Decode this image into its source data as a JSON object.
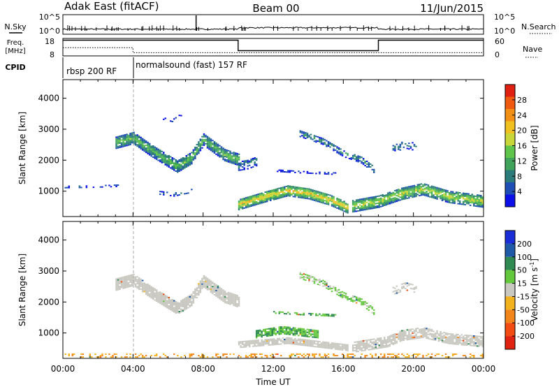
{
  "header": {
    "left_title": "Adak East (fitACF)",
    "center_title": "Beam 00",
    "right_title": "11/Jun/2015"
  },
  "chart_data": [
    {
      "type": "line",
      "panel": "noise",
      "left_label": "N.Sky",
      "right_label": "N.Search",
      "left_ticks": [
        "10^5",
        "10^0"
      ],
      "right_ticks": [
        "10^5",
        "10^0"
      ],
      "scale": "log",
      "x_range": [
        "00:00",
        "24:00"
      ]
    },
    {
      "type": "line",
      "panel": "frequency",
      "left_label_line1": "Freq.",
      "left_label_line2": "[MHz]",
      "right_label": "Nave",
      "left_ticks": [
        18,
        8
      ],
      "right_ticks": [
        60,
        0
      ],
      "ylim": [
        8,
        18
      ],
      "freq_segments": [
        {
          "start_hour": 0,
          "end_hour": 10,
          "value_mhz": 17.0
        },
        {
          "start_hour": 10,
          "end_hour": 18,
          "value_mhz": 11.0
        },
        {
          "start_hour": 18,
          "end_hour": 24,
          "value_mhz": 17.0
        }
      ],
      "nave_segments": [
        {
          "start_hour": 0,
          "end_hour": 4,
          "value": 28
        },
        {
          "start_hour": 4,
          "end_hour": 24,
          "value": 11
        }
      ]
    },
    {
      "type": "table",
      "panel": "cpid",
      "label": "CPID",
      "modes": [
        {
          "start_hour": 0,
          "label": "rbsp 200 RF"
        },
        {
          "start_hour": 4,
          "label": "normalsound (fast) 157 RF"
        }
      ]
    },
    {
      "type": "heatmap",
      "panel": "power",
      "ylabel": "Slant Range [km]",
      "xlim_hours": [
        0,
        24
      ],
      "ylim": [
        180,
        4600
      ],
      "y_ticks": [
        1000,
        2000,
        3000,
        4000
      ],
      "colorbar_label": "Power [dB]",
      "colorbar_ticks": [
        4,
        8,
        12,
        16,
        20,
        24,
        28
      ],
      "colorbar_range": [
        0,
        32
      ],
      "colorbar_colors": [
        "#0b10e8",
        "#1d4fb5",
        "#2a7b7a",
        "#3fa35c",
        "#5fc44a",
        "#c8d63a",
        "#f0c020",
        "#f29016",
        "#ef5a10",
        "#e02010"
      ],
      "echo_bands": [
        {
          "start_hour": 0.1,
          "end_hour": 3.2,
          "points": [
            [
              0.1,
              1120
            ],
            [
              1.5,
              1130
            ],
            [
              3.2,
              1160
            ]
          ],
          "thickness_km": 60,
          "intensity_db": 7,
          "density": 0.35
        },
        {
          "start_hour": 3.0,
          "end_hour": 10.0,
          "points": [
            [
              3.0,
              2550
            ],
            [
              4.0,
              2700
            ],
            [
              5.0,
              2300
            ],
            [
              6.0,
              1950
            ],
            [
              6.5,
              1780
            ],
            [
              7.3,
              2050
            ],
            [
              8.0,
              2650
            ],
            [
              9.2,
              2150
            ],
            [
              10.0,
              2000
            ]
          ],
          "thickness_km": 380,
          "intensity_db": 14,
          "density": 0.9
        },
        {
          "start_hour": 5.5,
          "end_hour": 6.8,
          "points": [
            [
              5.5,
              3350
            ],
            [
              6.2,
              3250
            ],
            [
              6.8,
              3480
            ]
          ],
          "thickness_km": 50,
          "intensity_db": 6,
          "density": 0.25
        },
        {
          "start_hour": 5.3,
          "end_hour": 7.3,
          "points": [
            [
              5.3,
              950
            ],
            [
              6.3,
              880
            ],
            [
              7.3,
              1000
            ]
          ],
          "thickness_km": 120,
          "intensity_db": 6,
          "density": 0.35
        },
        {
          "start_hour": 10.0,
          "end_hour": 16.2,
          "points": [
            [
              10.0,
              550
            ],
            [
              11.5,
              800
            ],
            [
              12.8,
              1000
            ],
            [
              14.0,
              900
            ],
            [
              15.2,
              700
            ],
            [
              16.2,
              450
            ]
          ],
          "thickness_km": 340,
          "intensity_db": 21,
          "density": 0.9
        },
        {
          "start_hour": 10.0,
          "end_hour": 11.0,
          "points": [
            [
              10.0,
              1800
            ],
            [
              10.5,
              1850
            ],
            [
              11.0,
              1950
            ]
          ],
          "thickness_km": 300,
          "intensity_db": 9,
          "density": 0.6
        },
        {
          "start_hour": 12.0,
          "end_hour": 15.5,
          "points": [
            [
              12.0,
              1650
            ],
            [
              13.5,
              1600
            ],
            [
              15.5,
              1550
            ]
          ],
          "thickness_km": 60,
          "intensity_db": 6,
          "density": 0.45
        },
        {
          "start_hour": 13.5,
          "end_hour": 17.8,
          "points": [
            [
              13.5,
              2850
            ],
            [
              14.8,
              2600
            ],
            [
              16.0,
              2200
            ],
            [
              17.0,
              2000
            ],
            [
              17.8,
              1650
            ]
          ],
          "thickness_km": 220,
          "intensity_db": 10,
          "density": 0.6
        },
        {
          "start_hour": 18.8,
          "end_hour": 20.2,
          "points": [
            [
              18.8,
              2350
            ],
            [
              19.5,
              2500
            ],
            [
              20.2,
              2400
            ]
          ],
          "thickness_km": 260,
          "intensity_db": 8,
          "density": 0.45
        },
        {
          "start_hour": 16.5,
          "end_hour": 24.0,
          "points": [
            [
              16.5,
              500
            ],
            [
              18.0,
              650
            ],
            [
              19.3,
              900
            ],
            [
              20.5,
              1050
            ],
            [
              22.0,
              800
            ],
            [
              24.0,
              650
            ]
          ],
          "thickness_km": 380,
          "intensity_db": 18,
          "density": 0.85
        }
      ]
    },
    {
      "type": "heatmap",
      "panel": "velocity",
      "ylabel": "Slant Range [km]",
      "xlabel": "Time UT",
      "x_ticks": [
        "00:00",
        "04:00",
        "08:00",
        "12:00",
        "16:00",
        "20:00",
        "00:00"
      ],
      "xlim_hours": [
        0,
        24
      ],
      "ylim": [
        180,
        4600
      ],
      "y_ticks": [
        1000,
        2000,
        3000,
        4000
      ],
      "colorbar_label_main": "Velocity [m s",
      "colorbar_label_exp": "-1",
      "colorbar_label_end": "]",
      "colorbar_ticks": [
        "200",
        "100",
        "50",
        "15",
        "-15",
        "-50",
        "-100",
        "-200"
      ],
      "colorbar_colors": [
        "#1a2ed8",
        "#1e5aa8",
        "#2e8a50",
        "#64c83c",
        "#c8c8c0",
        "#f2b21e",
        "#f2861a",
        "#f24c12",
        "#e02210"
      ],
      "echo_bands": [
        {
          "start_hour": 3.0,
          "end_hour": 10.0,
          "points": [
            [
              3.0,
              2550
            ],
            [
              4.0,
              2700
            ],
            [
              5.0,
              2300
            ],
            [
              6.0,
              1950
            ],
            [
              6.5,
              1780
            ],
            [
              7.3,
              2050
            ],
            [
              8.0,
              2650
            ],
            [
              9.2,
              2150
            ],
            [
              10.0,
              2000
            ]
          ],
          "thickness_km": 380,
          "velocity": 0,
          "density": 0.9
        },
        {
          "start_hour": 10.0,
          "end_hour": 16.2,
          "points": [
            [
              10.0,
              620
            ],
            [
              12.8,
              750
            ],
            [
              16.2,
              520
            ]
          ],
          "thickness_km": 220,
          "velocity": 0,
          "density": 0.85
        },
        {
          "start_hour": 11.0,
          "end_hour": 14.5,
          "points": [
            [
              11.0,
              950
            ],
            [
              12.5,
              1080
            ],
            [
              14.5,
              950
            ]
          ],
          "thickness_km": 250,
          "velocity": 30,
          "density": 0.85
        },
        {
          "start_hour": 12.0,
          "end_hour": 15.5,
          "points": [
            [
              12.0,
              1650
            ],
            [
              13.5,
              1600
            ],
            [
              15.5,
              1550
            ]
          ],
          "thickness_km": 60,
          "velocity": 30,
          "density": 0.5
        },
        {
          "start_hour": 13.5,
          "end_hour": 17.8,
          "points": [
            [
              13.5,
              2850
            ],
            [
              14.8,
              2600
            ],
            [
              16.0,
              2200
            ],
            [
              17.0,
              2000
            ],
            [
              17.8,
              1650
            ]
          ],
          "thickness_km": 220,
          "velocity": 20,
          "density": 0.6
        },
        {
          "start_hour": 18.8,
          "end_hour": 20.2,
          "points": [
            [
              18.8,
              2350
            ],
            [
              19.5,
              2500
            ],
            [
              20.2,
              2400
            ]
          ],
          "thickness_km": 260,
          "velocity": 0,
          "density": 0.5
        },
        {
          "start_hour": 16.5,
          "end_hour": 24.0,
          "points": [
            [
              16.5,
              520
            ],
            [
              18.5,
              700
            ],
            [
              19.3,
              900
            ],
            [
              20.5,
              1000
            ],
            [
              22.0,
              800
            ],
            [
              24.0,
              700
            ]
          ],
          "thickness_km": 330,
          "velocity": 0,
          "density": 0.8
        },
        {
          "start_hour": 0.0,
          "end_hour": 24.0,
          "points": [
            [
              0.0,
              260
            ],
            [
              24.0,
              260
            ]
          ],
          "thickness_km": 120,
          "velocity": -30,
          "density": 0.3
        }
      ]
    }
  ]
}
